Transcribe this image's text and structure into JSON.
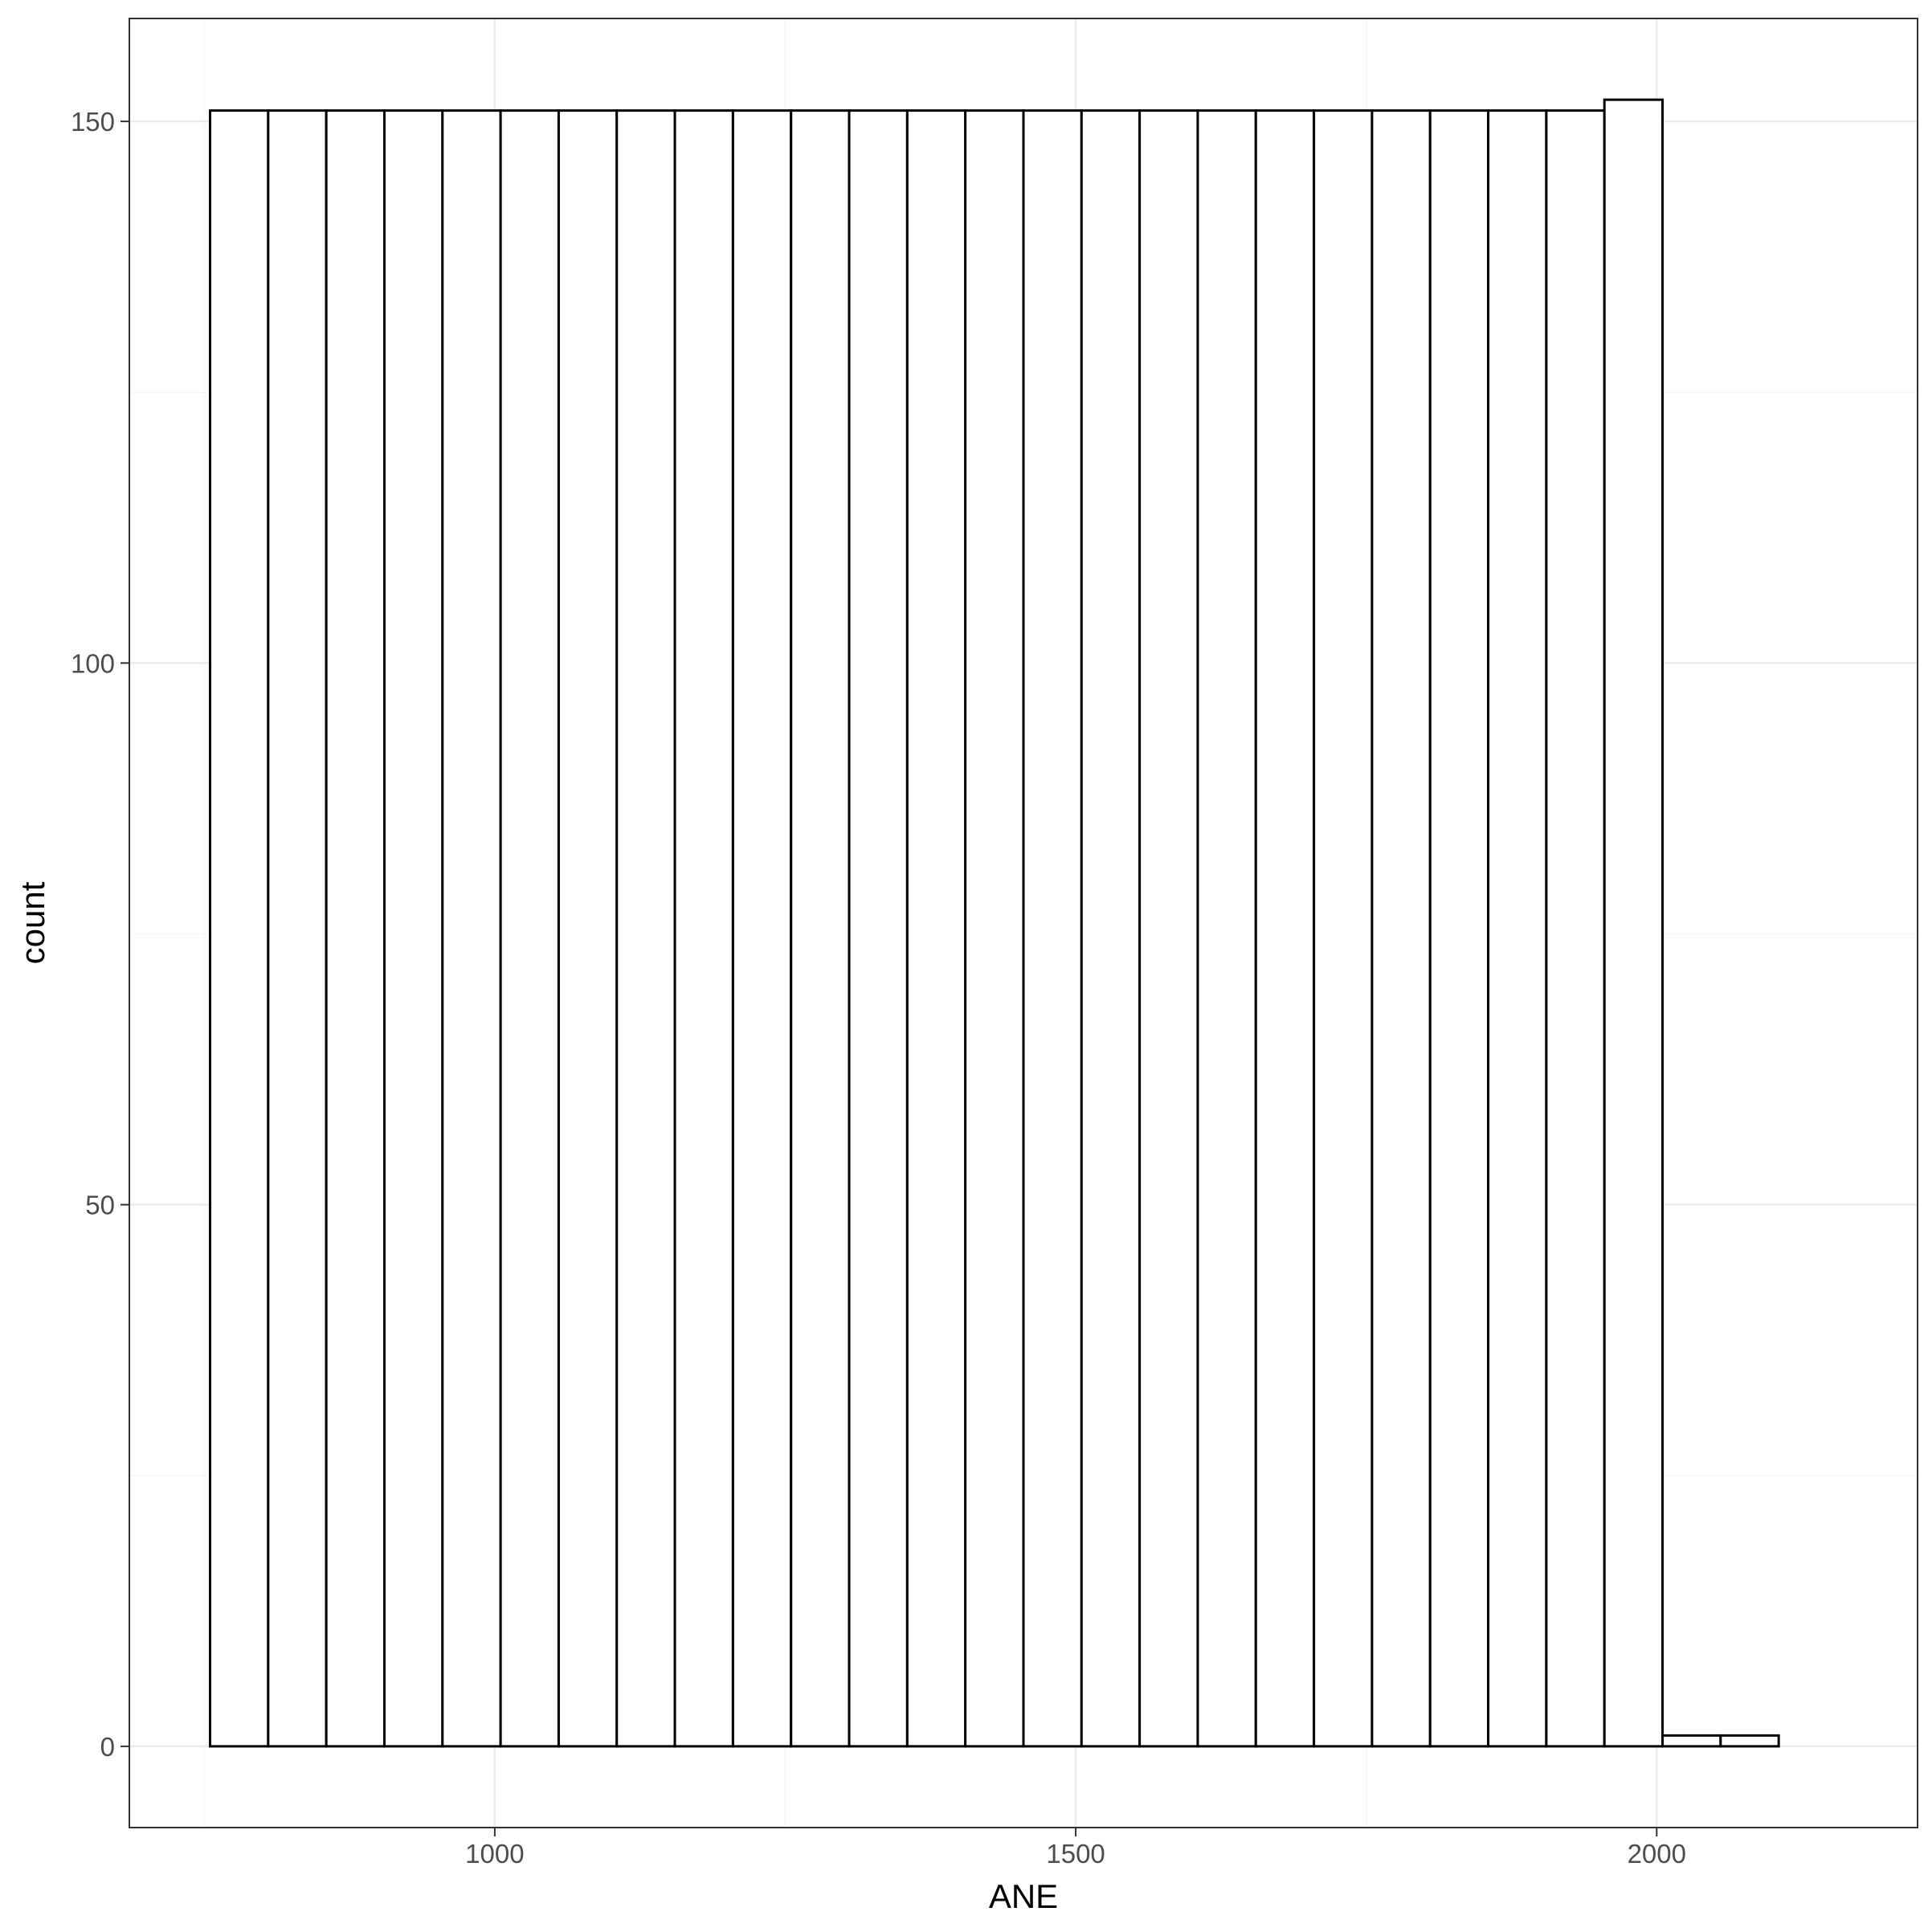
{
  "chart_data": {
    "type": "bar",
    "xlabel": "ANE",
    "ylabel": "count",
    "xlim": [
      685.5,
      2224.5
    ],
    "ylim": [
      -7.5,
      159.5
    ],
    "x_ticks": [
      1000,
      1500,
      2000
    ],
    "x_tick_labels": [
      "1000",
      "1500",
      "2000"
    ],
    "y_ticks": [
      0,
      50,
      100,
      150
    ],
    "y_tick_labels": [
      "0",
      "50",
      "100",
      "150"
    ],
    "grid": true,
    "legend": "none",
    "bars": [
      {
        "x0": 755,
        "x1": 805,
        "value": 151
      },
      {
        "x0": 805,
        "x1": 855,
        "value": 151
      },
      {
        "x0": 855,
        "x1": 905,
        "value": 151
      },
      {
        "x0": 905,
        "x1": 955,
        "value": 151
      },
      {
        "x0": 955,
        "x1": 1005,
        "value": 151
      },
      {
        "x0": 1005,
        "x1": 1055,
        "value": 151
      },
      {
        "x0": 1055,
        "x1": 1105,
        "value": 151
      },
      {
        "x0": 1105,
        "x1": 1155,
        "value": 151
      },
      {
        "x0": 1155,
        "x1": 1205,
        "value": 151
      },
      {
        "x0": 1205,
        "x1": 1255,
        "value": 151
      },
      {
        "x0": 1255,
        "x1": 1305,
        "value": 151
      },
      {
        "x0": 1305,
        "x1": 1355,
        "value": 151
      },
      {
        "x0": 1355,
        "x1": 1405,
        "value": 151
      },
      {
        "x0": 1405,
        "x1": 1455,
        "value": 151
      },
      {
        "x0": 1455,
        "x1": 1505,
        "value": 151
      },
      {
        "x0": 1505,
        "x1": 1555,
        "value": 151
      },
      {
        "x0": 1555,
        "x1": 1605,
        "value": 151
      },
      {
        "x0": 1605,
        "x1": 1655,
        "value": 151
      },
      {
        "x0": 1655,
        "x1": 1705,
        "value": 151
      },
      {
        "x0": 1705,
        "x1": 1755,
        "value": 151
      },
      {
        "x0": 1755,
        "x1": 1805,
        "value": 151
      },
      {
        "x0": 1805,
        "x1": 1855,
        "value": 151
      },
      {
        "x0": 1855,
        "x1": 1905,
        "value": 151
      },
      {
        "x0": 1905,
        "x1": 1955,
        "value": 151
      },
      {
        "x0": 1955,
        "x1": 2005,
        "value": 152
      },
      {
        "x0": 2005,
        "x1": 2055,
        "value": 1
      },
      {
        "x0": 2055,
        "x1": 2105,
        "value": 1
      }
    ],
    "colors": {
      "bar_fill": "#ffffff",
      "bar_stroke": "#000000",
      "panel_border": "#333333",
      "grid_major": "#ebebeb",
      "grid_minor": "#f5f5f5",
      "tick_text": "#4d4d4d",
      "title_text": "#000000"
    }
  }
}
